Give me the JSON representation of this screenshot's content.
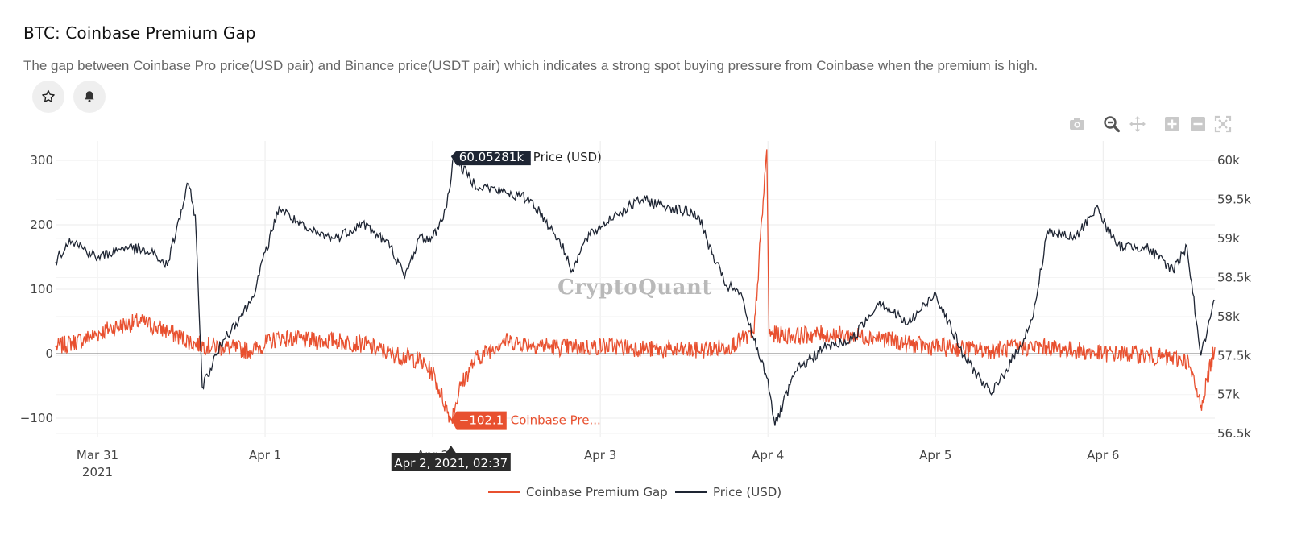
{
  "header": {
    "title": "BTC: Coinbase Premium Gap",
    "description": "The gap between Coinbase Pro price(USD pair) and Binance price(USDT pair) which indicates a strong spot buying pressure from Coinbase when the premium is high.",
    "star_icon": "star-icon",
    "bell_icon": "bell-icon"
  },
  "modebar": [
    "camera-icon",
    "zoom-icon",
    "pan-icon",
    "zoom-in-icon",
    "zoom-out-icon",
    "autoscale-icon"
  ],
  "watermark": "CryptoQuant",
  "colors": {
    "premium": "#e8502f",
    "price": "#1e2533",
    "grid": "#ebebeb",
    "zero": "#777777"
  },
  "chart_data": {
    "type": "line",
    "x_range": [
      "2021-03-30T18:00",
      "2021-04-06T16:00"
    ],
    "x_ticks": [
      {
        "label": "Mar 31",
        "sublabel": "2021",
        "t": "2021-03-31T00:00"
      },
      {
        "label": "Apr 1",
        "t": "2021-04-01T00:00"
      },
      {
        "label": "Apr 2",
        "t": "2021-04-02T00:00"
      },
      {
        "label": "Apr 3",
        "t": "2021-04-03T00:00"
      },
      {
        "label": "Apr 4",
        "t": "2021-04-04T00:00"
      },
      {
        "label": "Apr 5",
        "t": "2021-04-05T00:00"
      },
      {
        "label": "Apr 6",
        "t": "2021-04-06T00:00"
      }
    ],
    "y_left": {
      "range": [
        -130,
        330
      ],
      "ticks": [
        300,
        200,
        100,
        0,
        -100
      ],
      "tick_labels": [
        "300",
        "200",
        "100",
        "0",
        "−100"
      ]
    },
    "y_right": {
      "range": [
        56.45,
        60.25
      ],
      "ticks": [
        60,
        59.5,
        59,
        58.5,
        58,
        57.5,
        57,
        56.5
      ],
      "tick_labels": [
        "60k",
        "59.5k",
        "59k",
        "58.5k",
        "58k",
        "57.5k",
        "57k",
        "56.5k"
      ]
    },
    "series": [
      {
        "name": "Coinbase Premium Gap",
        "axis": "left",
        "color": "#e8502f",
        "points": [
          [
            "2021-03-30T18:00",
            10
          ],
          [
            "2021-03-30T22:00",
            22
          ],
          [
            "2021-03-31T02:00",
            40
          ],
          [
            "2021-03-31T06:00",
            50
          ],
          [
            "2021-03-31T10:00",
            35
          ],
          [
            "2021-03-31T14:00",
            15
          ],
          [
            "2021-03-31T18:00",
            10
          ],
          [
            "2021-03-31T22:00",
            5
          ],
          [
            "2021-04-01T02:00",
            25
          ],
          [
            "2021-04-01T06:00",
            20
          ],
          [
            "2021-04-01T10:00",
            20
          ],
          [
            "2021-04-01T14:00",
            15
          ],
          [
            "2021-04-01T18:00",
            0
          ],
          [
            "2021-04-01T22:00",
            -10
          ],
          [
            "2021-04-02T00:00",
            -30
          ],
          [
            "2021-04-02T02:37",
            -102.1
          ],
          [
            "2021-04-02T04:00",
            -50
          ],
          [
            "2021-04-02T06:00",
            -10
          ],
          [
            "2021-04-02T10:00",
            20
          ],
          [
            "2021-04-02T14:00",
            15
          ],
          [
            "2021-04-02T18:00",
            10
          ],
          [
            "2021-04-02T22:00",
            10
          ],
          [
            "2021-04-03T02:00",
            12
          ],
          [
            "2021-04-03T06:00",
            8
          ],
          [
            "2021-04-03T10:00",
            5
          ],
          [
            "2021-04-03T14:00",
            5
          ],
          [
            "2021-04-03T18:00",
            10
          ],
          [
            "2021-04-03T22:00",
            30
          ],
          [
            "2021-04-03T23:50",
            317
          ],
          [
            "2021-04-04T00:10",
            30
          ],
          [
            "2021-04-04T04:00",
            28
          ],
          [
            "2021-04-04T08:00",
            30
          ],
          [
            "2021-04-04T12:00",
            28
          ],
          [
            "2021-04-04T16:00",
            25
          ],
          [
            "2021-04-04T20:00",
            15
          ],
          [
            "2021-04-05T00:00",
            10
          ],
          [
            "2021-04-05T04:00",
            8
          ],
          [
            "2021-04-05T08:00",
            5
          ],
          [
            "2021-04-05T12:00",
            10
          ],
          [
            "2021-04-05T16:00",
            10
          ],
          [
            "2021-04-05T20:00",
            5
          ],
          [
            "2021-04-06T00:00",
            0
          ],
          [
            "2021-04-06T04:00",
            0
          ],
          [
            "2021-04-06T08:00",
            -5
          ],
          [
            "2021-04-06T12:00",
            -10
          ],
          [
            "2021-04-06T14:00",
            -80
          ],
          [
            "2021-04-06T16:00",
            10
          ]
        ]
      },
      {
        "name": "Price (USD)",
        "axis": "right",
        "color": "#1e2533",
        "points": [
          [
            "2021-03-30T18:00",
            58.7
          ],
          [
            "2021-03-30T20:00",
            59.0
          ],
          [
            "2021-03-31T00:00",
            58.75
          ],
          [
            "2021-03-31T04:00",
            58.9
          ],
          [
            "2021-03-31T08:00",
            58.8
          ],
          [
            "2021-03-31T10:00",
            58.65
          ],
          [
            "2021-03-31T13:00",
            59.7
          ],
          [
            "2021-03-31T14:00",
            59.3
          ],
          [
            "2021-03-31T15:00",
            57.1
          ],
          [
            "2021-03-31T18:00",
            57.7
          ],
          [
            "2021-03-31T22:00",
            58.2
          ],
          [
            "2021-04-01T02:00",
            59.4
          ],
          [
            "2021-04-01T06:00",
            59.1
          ],
          [
            "2021-04-01T10:00",
            59.0
          ],
          [
            "2021-04-01T14:00",
            59.2
          ],
          [
            "2021-04-01T18:00",
            58.9
          ],
          [
            "2021-04-01T20:00",
            58.5
          ],
          [
            "2021-04-01T22:00",
            59.0
          ],
          [
            "2021-04-02T00:00",
            59.0
          ],
          [
            "2021-04-02T02:00",
            59.4
          ],
          [
            "2021-04-02T03:00",
            60.05
          ],
          [
            "2021-04-02T06:00",
            59.7
          ],
          [
            "2021-04-02T10:00",
            59.6
          ],
          [
            "2021-04-02T14:00",
            59.5
          ],
          [
            "2021-04-02T18:00",
            59.0
          ],
          [
            "2021-04-02T20:00",
            58.6
          ],
          [
            "2021-04-02T22:00",
            59.0
          ],
          [
            "2021-04-03T02:00",
            59.3
          ],
          [
            "2021-04-03T06:00",
            59.5
          ],
          [
            "2021-04-03T10:00",
            59.4
          ],
          [
            "2021-04-03T14:00",
            59.3
          ],
          [
            "2021-04-03T16:00",
            58.8
          ],
          [
            "2021-04-03T18:00",
            58.4
          ],
          [
            "2021-04-03T20:00",
            58.3
          ],
          [
            "2021-04-03T22:00",
            57.7
          ],
          [
            "2021-04-04T00:00",
            57.2
          ],
          [
            "2021-04-04T01:00",
            56.6
          ],
          [
            "2021-04-04T04:00",
            57.3
          ],
          [
            "2021-04-04T08:00",
            57.6
          ],
          [
            "2021-04-04T12:00",
            57.7
          ],
          [
            "2021-04-04T16:00",
            58.2
          ],
          [
            "2021-04-04T20:00",
            57.9
          ],
          [
            "2021-04-05T00:00",
            58.3
          ],
          [
            "2021-04-05T04:00",
            57.5
          ],
          [
            "2021-04-05T08:00",
            57.0
          ],
          [
            "2021-04-05T12:00",
            57.6
          ],
          [
            "2021-04-05T14:00",
            58.0
          ],
          [
            "2021-04-05T16:00",
            59.1
          ],
          [
            "2021-04-05T20:00",
            59.0
          ],
          [
            "2021-04-05T23:00",
            59.4
          ],
          [
            "2021-04-06T02:00",
            58.9
          ],
          [
            "2021-04-06T06:00",
            58.9
          ],
          [
            "2021-04-06T10:00",
            58.6
          ],
          [
            "2021-04-06T12:00",
            58.9
          ],
          [
            "2021-04-06T14:00",
            57.5
          ],
          [
            "2021-04-06T16:00",
            58.2
          ]
        ]
      }
    ],
    "hover": {
      "x_label": "Apr 2, 2021, 02:37",
      "t": "2021-04-02T02:37",
      "price_value": "60.05281k",
      "price_name": "Price (USD)",
      "price_y": 60.05281,
      "premium_value": "−102.1",
      "premium_name": "Coinbase Pre...",
      "premium_y": -102.1
    },
    "legend": [
      {
        "name": "Coinbase Premium Gap",
        "color": "#e8502f"
      },
      {
        "name": "Price (USD)",
        "color": "#1e2533"
      }
    ],
    "legend_position": "bottom-center",
    "grid": true
  }
}
